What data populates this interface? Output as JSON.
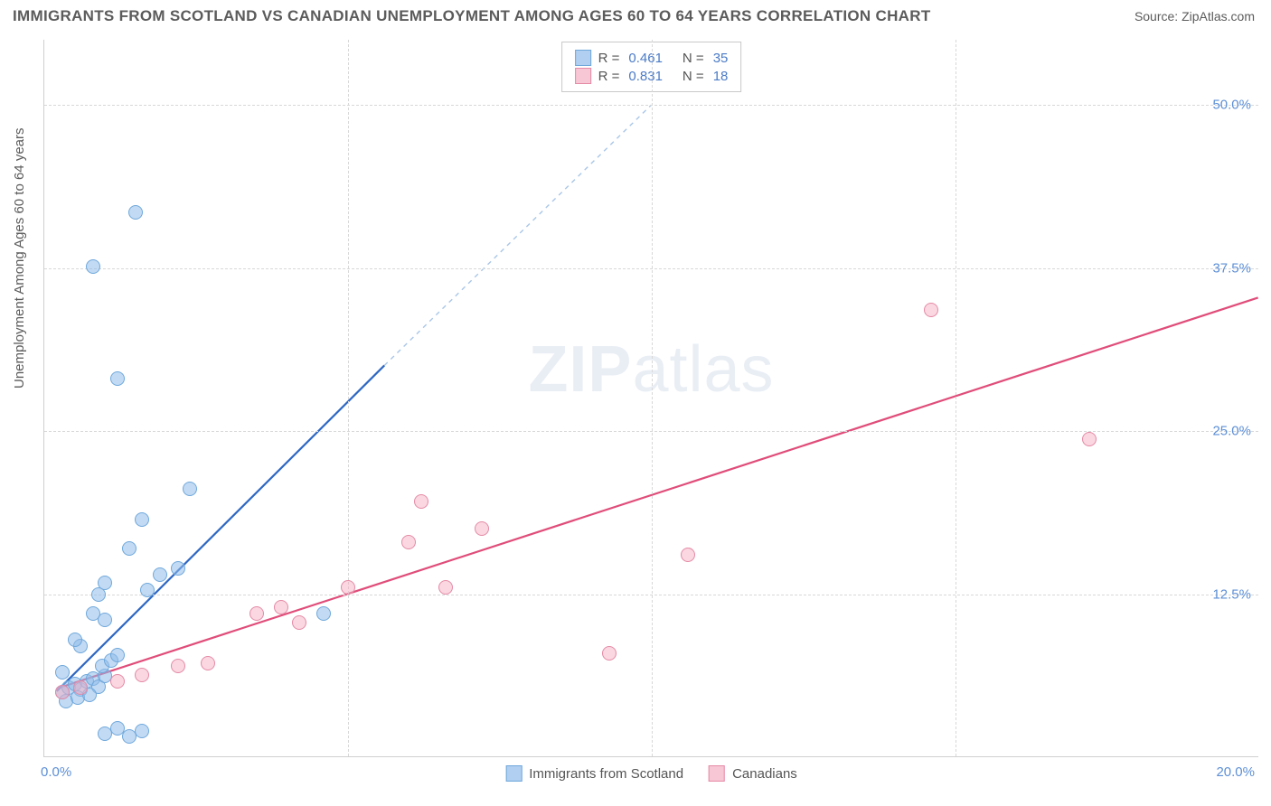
{
  "title": "IMMIGRANTS FROM SCOTLAND VS CANADIAN UNEMPLOYMENT AMONG AGES 60 TO 64 YEARS CORRELATION CHART",
  "source": "Source: ZipAtlas.com",
  "ylabel": "Unemployment Among Ages 60 to 64 years",
  "watermark_a": "ZIP",
  "watermark_b": "atlas",
  "chart": {
    "type": "scatter",
    "xlim": [
      0,
      20
    ],
    "ylim": [
      0,
      55
    ],
    "xtick_min": {
      "value": 0,
      "label": "0.0%"
    },
    "xtick_max": {
      "value": 20,
      "label": "20.0%"
    },
    "yticks": [
      {
        "value": 12.5,
        "label": "12.5%"
      },
      {
        "value": 25.0,
        "label": "25.0%"
      },
      {
        "value": 37.5,
        "label": "37.5%"
      },
      {
        "value": 50.0,
        "label": "50.0%"
      }
    ],
    "vgrids": [
      5,
      10,
      15
    ],
    "background_color": "#ffffff",
    "grid_color": "#d8d8d8",
    "axis_color": "#cfcfcf",
    "tick_label_color": "#5d8fd6"
  },
  "series": [
    {
      "name": "Immigrants from Scotland",
      "color_fill": "rgba(144,187,233,0.55)",
      "color_stroke": "#6fa8dc",
      "trend_color": "#2e67c3",
      "trend_dash_color": "#a9c6e8",
      "R": "0.461",
      "N": "35",
      "marker_radius": 8,
      "trend": {
        "x1": 0.2,
        "y1": 5.0,
        "x2": 5.6,
        "y2": 30.0,
        "dash_x2": 10.0,
        "dash_y2": 50.0
      },
      "points": [
        [
          0.3,
          5.0
        ],
        [
          0.4,
          5.3
        ],
        [
          0.5,
          5.6
        ],
        [
          0.6,
          5.2
        ],
        [
          0.7,
          5.8
        ],
        [
          0.8,
          6.0
        ],
        [
          0.9,
          5.4
        ],
        [
          1.0,
          6.2
        ],
        [
          0.35,
          4.3
        ],
        [
          0.55,
          4.6
        ],
        [
          0.75,
          4.8
        ],
        [
          0.95,
          7.0
        ],
        [
          1.1,
          7.4
        ],
        [
          1.2,
          7.8
        ],
        [
          0.6,
          8.5
        ],
        [
          0.9,
          12.5
        ],
        [
          1.0,
          13.4
        ],
        [
          1.7,
          12.8
        ],
        [
          1.9,
          14.0
        ],
        [
          1.4,
          16.0
        ],
        [
          1.6,
          18.2
        ],
        [
          2.4,
          20.6
        ],
        [
          2.2,
          14.5
        ],
        [
          1.0,
          1.8
        ],
        [
          1.2,
          2.2
        ],
        [
          1.4,
          1.6
        ],
        [
          1.6,
          2.0
        ],
        [
          0.8,
          11.0
        ],
        [
          1.0,
          10.5
        ],
        [
          4.6,
          11.0
        ],
        [
          1.2,
          29.0
        ],
        [
          0.8,
          37.6
        ],
        [
          1.5,
          41.8
        ],
        [
          0.5,
          9.0
        ],
        [
          0.3,
          6.5
        ]
      ]
    },
    {
      "name": "Canadians",
      "color_fill": "rgba(245,175,196,0.5)",
      "color_stroke": "#e58aa6",
      "trend_color": "#e04d7a",
      "R": "0.831",
      "N": "18",
      "marker_radius": 8,
      "trend": {
        "x1": 0.2,
        "y1": 5.2,
        "x2": 20.0,
        "y2": 35.2
      },
      "points": [
        [
          0.3,
          5.0
        ],
        [
          0.6,
          5.3
        ],
        [
          1.2,
          5.8
        ],
        [
          1.6,
          6.3
        ],
        [
          2.2,
          7.0
        ],
        [
          2.7,
          7.2
        ],
        [
          3.5,
          11.0
        ],
        [
          3.9,
          11.5
        ],
        [
          4.2,
          10.3
        ],
        [
          6.0,
          16.5
        ],
        [
          6.2,
          19.6
        ],
        [
          7.2,
          17.5
        ],
        [
          6.6,
          13.0
        ],
        [
          9.3,
          8.0
        ],
        [
          10.6,
          15.5
        ],
        [
          14.6,
          34.3
        ],
        [
          17.2,
          24.4
        ],
        [
          5.0,
          13.0
        ]
      ]
    }
  ],
  "legend_top": {
    "r_label": "R =",
    "n_label": "N ="
  },
  "legend_bottom": [
    {
      "label": "Immigrants from Scotland",
      "swatch": "blue"
    },
    {
      "label": "Canadians",
      "swatch": "pink"
    }
  ]
}
